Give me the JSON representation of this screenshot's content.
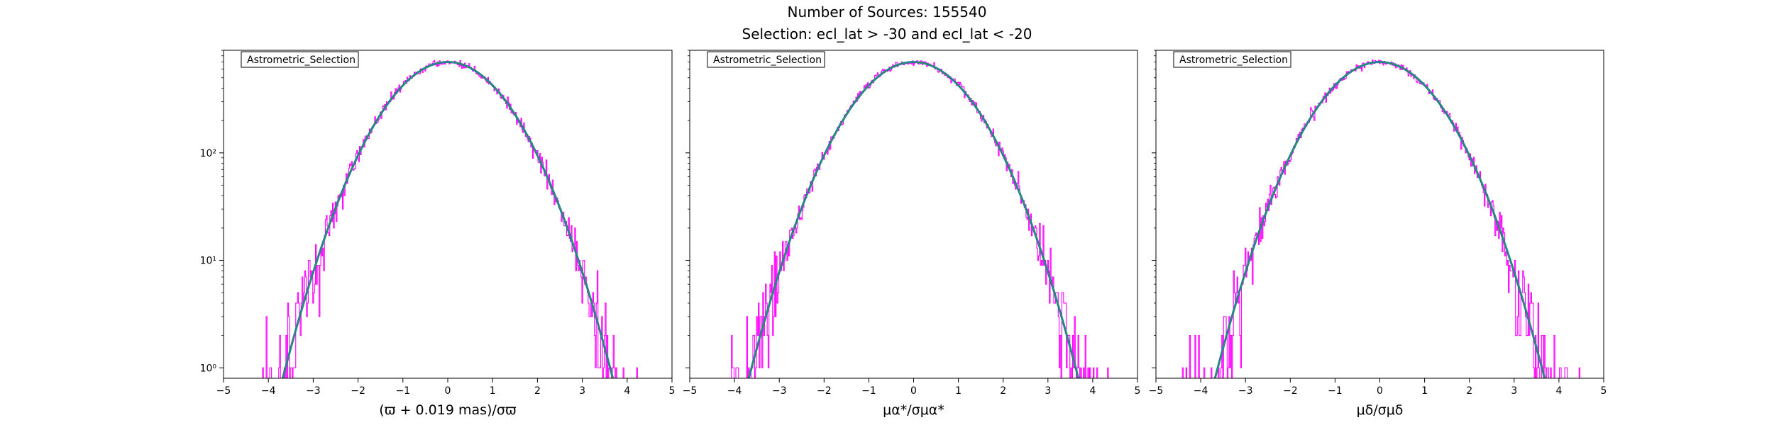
{
  "figure": {
    "title_line1": "Number of Sources: 155540",
    "title_line2": "Selection: ecl_lat > -30 and ecl_lat < -20"
  },
  "colors": {
    "histogram": "#ff00ff",
    "fit_outer": "#1f77b4",
    "fit_inner": "#2ca02c"
  },
  "chart_data": [
    {
      "type": "line",
      "legend": "Astrometric_Selection",
      "legend_position": "top-left",
      "xlabel": "(ϖ + 0.019 mas)/σϖ",
      "xlim": [
        -5,
        5
      ],
      "ylim": [
        0.8,
        900
      ],
      "yscale": "log",
      "xticks": [
        -5,
        -4,
        -3,
        -2,
        -1,
        0,
        1,
        2,
        3,
        4,
        5
      ],
      "yticks": [
        {
          "value": 1,
          "label": "10⁰"
        },
        {
          "value": 10,
          "label": "10¹"
        },
        {
          "value": 100,
          "label": "10²"
        }
      ],
      "grid": false,
      "series": [
        {
          "kind": "histogram-step",
          "x_range": [
            -4.95,
            4.95
          ],
          "bin_width": 0.02,
          "peak": 700,
          "sigma": 1.0
        },
        {
          "kind": "gaussian-fit",
          "peak": 700,
          "sigma": 1.0,
          "mean": 0
        }
      ]
    },
    {
      "type": "line",
      "legend": "Astrometric_Selection",
      "legend_position": "top-left",
      "xlabel": "μα*/σμα*",
      "xlim": [
        -5,
        5
      ],
      "ylim": [
        0.8,
        900
      ],
      "yscale": "log",
      "xticks": [
        -5,
        -4,
        -3,
        -2,
        -1,
        0,
        1,
        2,
        3,
        4,
        5
      ],
      "yticks": [
        {
          "value": 1,
          "label": ""
        },
        {
          "value": 10,
          "label": ""
        },
        {
          "value": 100,
          "label": ""
        }
      ],
      "grid": false,
      "series": [
        {
          "kind": "histogram-step",
          "x_range": [
            -4.95,
            4.95
          ],
          "bin_width": 0.02,
          "peak": 700,
          "sigma": 1.0
        },
        {
          "kind": "gaussian-fit",
          "peak": 700,
          "sigma": 1.0,
          "mean": 0
        }
      ]
    },
    {
      "type": "line",
      "legend": "Astrometric_Selection",
      "legend_position": "top-left",
      "xlabel": "μδ/σμδ",
      "xlim": [
        -5,
        5
      ],
      "ylim": [
        0.8,
        900
      ],
      "yscale": "log",
      "xticks": [
        -5,
        -4,
        -3,
        -2,
        -1,
        0,
        1,
        2,
        3,
        4,
        5
      ],
      "yticks": [
        {
          "value": 1,
          "label": ""
        },
        {
          "value": 10,
          "label": ""
        },
        {
          "value": 100,
          "label": ""
        }
      ],
      "grid": false,
      "series": [
        {
          "kind": "histogram-step",
          "x_range": [
            -4.95,
            4.95
          ],
          "bin_width": 0.02,
          "peak": 700,
          "sigma": 1.0
        },
        {
          "kind": "gaussian-fit",
          "peak": 700,
          "sigma": 1.0,
          "mean": 0
        }
      ]
    }
  ]
}
